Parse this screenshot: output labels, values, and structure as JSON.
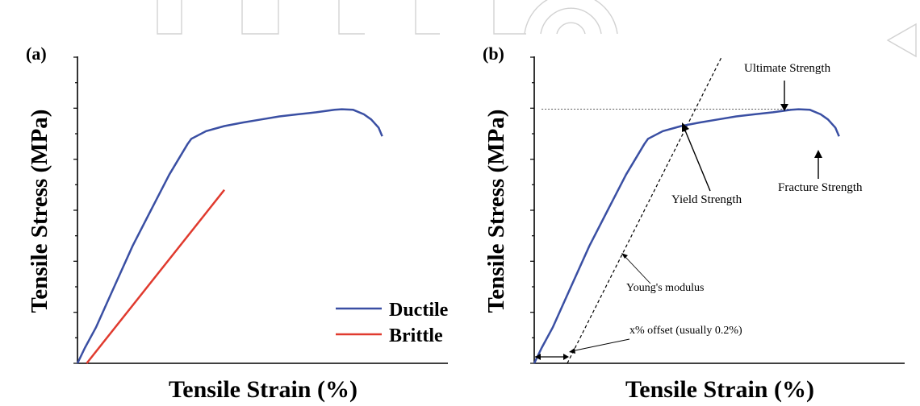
{
  "chart_data": [
    {
      "type": "line",
      "panel_label": "(a)",
      "xlabel": "Tensile Strain (%)",
      "ylabel": "Tensile Stress (MPa)",
      "xlim": [
        0,
        100
      ],
      "ylim": [
        0,
        6
      ],
      "grid": false,
      "legend_position": "bottom-right",
      "series": [
        {
          "name": "Ductile",
          "color": "#3a4fa3",
          "points": [
            [
              0,
              0
            ],
            [
              2,
              0.3
            ],
            [
              5,
              0.7
            ],
            [
              10,
              1.5
            ],
            [
              15,
              2.3
            ],
            [
              20,
              3.0
            ],
            [
              25,
              3.7
            ],
            [
              30,
              4.3
            ],
            [
              31,
              4.4
            ],
            [
              35,
              4.55
            ],
            [
              40,
              4.65
            ],
            [
              45,
              4.72
            ],
            [
              50,
              4.78
            ],
            [
              55,
              4.84
            ],
            [
              60,
              4.88
            ],
            [
              65,
              4.92
            ],
            [
              70,
              4.97
            ],
            [
              72,
              4.98
            ],
            [
              75,
              4.97
            ],
            [
              78,
              4.88
            ],
            [
              80,
              4.78
            ],
            [
              82,
              4.62
            ],
            [
              83,
              4.45
            ]
          ]
        },
        {
          "name": "Brittle",
          "color": "#e03a2e",
          "points": [
            [
              2.5,
              0
            ],
            [
              40,
              3.4
            ]
          ]
        }
      ]
    },
    {
      "type": "line",
      "panel_label": "(b)",
      "xlabel": "Tensile Strain (%)",
      "ylabel": "Tensile Stress (MPa)",
      "xlim": [
        0,
        100
      ],
      "ylim": [
        0,
        6
      ],
      "grid": false,
      "series": [
        {
          "color": "#3a4fa3",
          "points": [
            [
              0,
              0
            ],
            [
              2,
              0.3
            ],
            [
              5,
              0.7
            ],
            [
              10,
              1.5
            ],
            [
              15,
              2.3
            ],
            [
              20,
              3.0
            ],
            [
              25,
              3.7
            ],
            [
              30,
              4.3
            ],
            [
              31,
              4.4
            ],
            [
              35,
              4.55
            ],
            [
              40,
              4.65
            ],
            [
              45,
              4.72
            ],
            [
              50,
              4.78
            ],
            [
              55,
              4.84
            ],
            [
              60,
              4.88
            ],
            [
              65,
              4.92
            ],
            [
              70,
              4.97
            ],
            [
              72,
              4.98
            ],
            [
              75,
              4.97
            ],
            [
              78,
              4.88
            ],
            [
              80,
              4.78
            ],
            [
              82,
              4.62
            ],
            [
              83,
              4.45
            ]
          ]
        }
      ],
      "offset_line": {
        "points": [
          [
            9,
            0
          ],
          [
            51,
            6.0
          ]
        ]
      },
      "ultimate_level": {
        "y": 4.98,
        "x_range": [
          2,
          75
        ]
      },
      "annotations": [
        {
          "text": "Ultimate Strength"
        },
        {
          "text": "Yield Strength"
        },
        {
          "text": "Fracture Strength"
        },
        {
          "text": "Young's modulus"
        },
        {
          "text": "x% offset (usually 0.2%)"
        }
      ]
    }
  ]
}
